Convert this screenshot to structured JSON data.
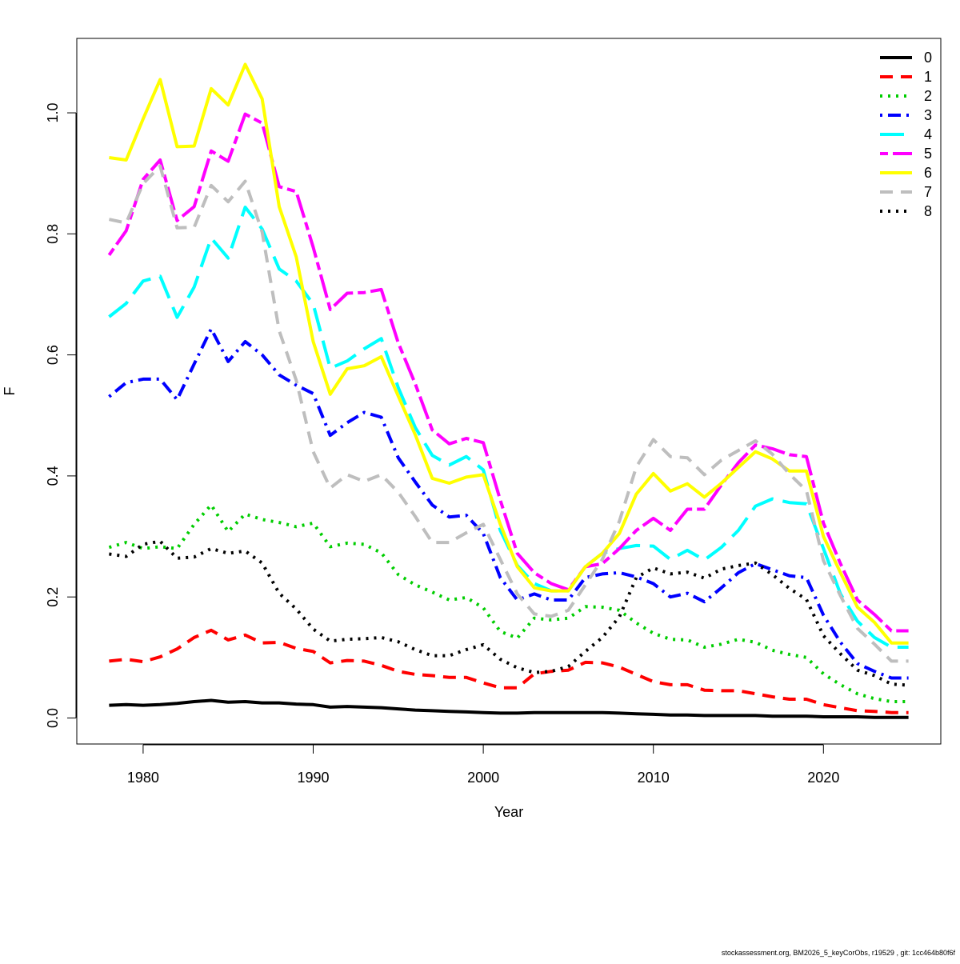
{
  "footer": {
    "text": "stockassessment.org, BM2026_5_keyCorObs, r19529 , git: 1cc464b80f6f"
  },
  "chart_data": {
    "type": "line",
    "xlabel": "Year",
    "ylabel": "F",
    "xlim": [
      1976.1,
      1826.9
    ],
    "x_ticks": [
      1980,
      1990,
      2000,
      2010,
      2020
    ],
    "y_ticks": [
      0.0,
      0.2,
      0.4,
      0.6,
      0.8,
      1.0
    ],
    "y_tick_labels": [
      "0.0",
      "0.2",
      "0.4",
      "0.6",
      "0.8",
      "1.0"
    ],
    "ylim": [
      -0.043,
      1.123
    ],
    "grid": false,
    "legend_position": "top-right",
    "x": [
      1978,
      1979,
      1980,
      1981,
      1982,
      1983,
      1984,
      1985,
      1986,
      1987,
      1988,
      1989,
      1990,
      1991,
      1992,
      1993,
      1994,
      1995,
      1996,
      1997,
      1998,
      1999,
      2000,
      2001,
      2002,
      2003,
      2004,
      2005,
      2006,
      2007,
      2008,
      2009,
      2010,
      2011,
      2012,
      2013,
      2014,
      2015,
      2016,
      2017,
      2018,
      2019,
      2020,
      2021,
      2022,
      2023,
      2024,
      2025
    ],
    "series": [
      {
        "name": "0",
        "color": "#000000",
        "dash": "solid",
        "values": [
          0.021,
          0.022,
          0.021,
          0.022,
          0.024,
          0.027,
          0.029,
          0.026,
          0.027,
          0.025,
          0.025,
          0.023,
          0.022,
          0.018,
          0.019,
          0.018,
          0.017,
          0.015,
          0.013,
          0.012,
          0.011,
          0.01,
          0.009,
          0.008,
          0.008,
          0.009,
          0.009,
          0.009,
          0.009,
          0.009,
          0.008,
          0.007,
          0.006,
          0.005,
          0.005,
          0.004,
          0.004,
          0.004,
          0.004,
          0.003,
          0.003,
          0.003,
          0.002,
          0.002,
          0.002,
          0.001,
          0.001,
          0.001
        ]
      },
      {
        "name": "1",
        "color": "#ff0000",
        "dash": "dashed",
        "values": [
          0.094,
          0.097,
          0.093,
          0.101,
          0.114,
          0.133,
          0.145,
          0.129,
          0.137,
          0.124,
          0.125,
          0.115,
          0.11,
          0.091,
          0.095,
          0.094,
          0.087,
          0.077,
          0.072,
          0.07,
          0.067,
          0.067,
          0.058,
          0.05,
          0.05,
          0.073,
          0.077,
          0.079,
          0.092,
          0.091,
          0.084,
          0.072,
          0.06,
          0.055,
          0.055,
          0.046,
          0.045,
          0.045,
          0.04,
          0.035,
          0.031,
          0.031,
          0.022,
          0.017,
          0.012,
          0.011,
          0.009,
          0.009
        ]
      },
      {
        "name": "2",
        "color": "#00cd00",
        "dash": "dotted",
        "values": [
          0.282,
          0.29,
          0.28,
          0.283,
          0.28,
          0.32,
          0.352,
          0.308,
          0.337,
          0.328,
          0.323,
          0.316,
          0.322,
          0.283,
          0.289,
          0.287,
          0.273,
          0.237,
          0.22,
          0.208,
          0.195,
          0.199,
          0.182,
          0.143,
          0.132,
          0.165,
          0.162,
          0.165,
          0.184,
          0.183,
          0.178,
          0.157,
          0.14,
          0.13,
          0.129,
          0.117,
          0.122,
          0.13,
          0.125,
          0.112,
          0.105,
          0.1,
          0.073,
          0.055,
          0.04,
          0.032,
          0.027,
          0.027
        ]
      },
      {
        "name": "3",
        "color": "#0000ff",
        "dash": "dotdash",
        "values": [
          0.531,
          0.554,
          0.56,
          0.56,
          0.526,
          0.585,
          0.643,
          0.589,
          0.622,
          0.6,
          0.567,
          0.55,
          0.536,
          0.467,
          0.488,
          0.505,
          0.497,
          0.43,
          0.39,
          0.352,
          0.332,
          0.335,
          0.305,
          0.232,
          0.195,
          0.205,
          0.195,
          0.195,
          0.232,
          0.238,
          0.24,
          0.233,
          0.222,
          0.2,
          0.206,
          0.192,
          0.215,
          0.24,
          0.255,
          0.245,
          0.235,
          0.232,
          0.17,
          0.125,
          0.09,
          0.077,
          0.066,
          0.066
        ]
      },
      {
        "name": "4",
        "color": "#00ffff",
        "dash": "longdash",
        "values": [
          0.663,
          0.685,
          0.722,
          0.73,
          0.662,
          0.712,
          0.793,
          0.76,
          0.844,
          0.808,
          0.742,
          0.722,
          0.684,
          0.578,
          0.59,
          0.61,
          0.627,
          0.546,
          0.48,
          0.434,
          0.418,
          0.432,
          0.41,
          0.31,
          0.252,
          0.222,
          0.21,
          0.21,
          0.25,
          0.272,
          0.28,
          0.285,
          0.284,
          0.262,
          0.277,
          0.261,
          0.282,
          0.31,
          0.35,
          0.362,
          0.356,
          0.354,
          0.28,
          0.205,
          0.16,
          0.133,
          0.117,
          0.117
        ]
      },
      {
        "name": "5",
        "color": "#ff00ff",
        "dash": "twodash",
        "values": [
          0.765,
          0.805,
          0.89,
          0.922,
          0.822,
          0.845,
          0.937,
          0.92,
          0.998,
          0.983,
          0.878,
          0.87,
          0.778,
          0.675,
          0.702,
          0.703,
          0.708,
          0.62,
          0.552,
          0.476,
          0.453,
          0.462,
          0.455,
          0.36,
          0.272,
          0.24,
          0.222,
          0.212,
          0.25,
          0.255,
          0.28,
          0.31,
          0.33,
          0.31,
          0.345,
          0.345,
          0.385,
          0.422,
          0.451,
          0.445,
          0.435,
          0.432,
          0.322,
          0.255,
          0.195,
          0.171,
          0.144,
          0.144
        ]
      },
      {
        "name": "6",
        "color": "#ffff00",
        "dash": "solid",
        "values": [
          0.926,
          0.922,
          0.99,
          1.055,
          0.944,
          0.945,
          1.04,
          1.013,
          1.08,
          1.023,
          0.845,
          0.762,
          0.622,
          0.535,
          0.577,
          0.582,
          0.597,
          0.532,
          0.468,
          0.396,
          0.388,
          0.398,
          0.402,
          0.32,
          0.25,
          0.215,
          0.21,
          0.21,
          0.25,
          0.272,
          0.305,
          0.37,
          0.404,
          0.375,
          0.387,
          0.365,
          0.388,
          0.414,
          0.44,
          0.428,
          0.408,
          0.408,
          0.3,
          0.24,
          0.183,
          0.158,
          0.124,
          0.124
        ]
      },
      {
        "name": "7",
        "color": "#bebebe",
        "dash": "dashed",
        "values": [
          0.824,
          0.818,
          0.883,
          0.912,
          0.81,
          0.811,
          0.88,
          0.853,
          0.887,
          0.803,
          0.64,
          0.558,
          0.44,
          0.38,
          0.402,
          0.391,
          0.402,
          0.373,
          0.333,
          0.29,
          0.29,
          0.306,
          0.32,
          0.262,
          0.205,
          0.172,
          0.168,
          0.178,
          0.22,
          0.262,
          0.325,
          0.415,
          0.46,
          0.432,
          0.43,
          0.402,
          0.426,
          0.442,
          0.458,
          0.436,
          0.403,
          0.376,
          0.26,
          0.202,
          0.148,
          0.122,
          0.094,
          0.094
        ]
      },
      {
        "name": "8",
        "color": "#000000",
        "dash": "dotted",
        "values": [
          0.271,
          0.267,
          0.287,
          0.292,
          0.264,
          0.266,
          0.28,
          0.272,
          0.276,
          0.256,
          0.206,
          0.18,
          0.147,
          0.127,
          0.13,
          0.131,
          0.133,
          0.126,
          0.113,
          0.103,
          0.103,
          0.113,
          0.121,
          0.097,
          0.083,
          0.075,
          0.077,
          0.085,
          0.11,
          0.133,
          0.167,
          0.232,
          0.248,
          0.238,
          0.241,
          0.231,
          0.246,
          0.252,
          0.256,
          0.237,
          0.214,
          0.196,
          0.136,
          0.106,
          0.079,
          0.07,
          0.056,
          0.054
        ]
      }
    ]
  }
}
